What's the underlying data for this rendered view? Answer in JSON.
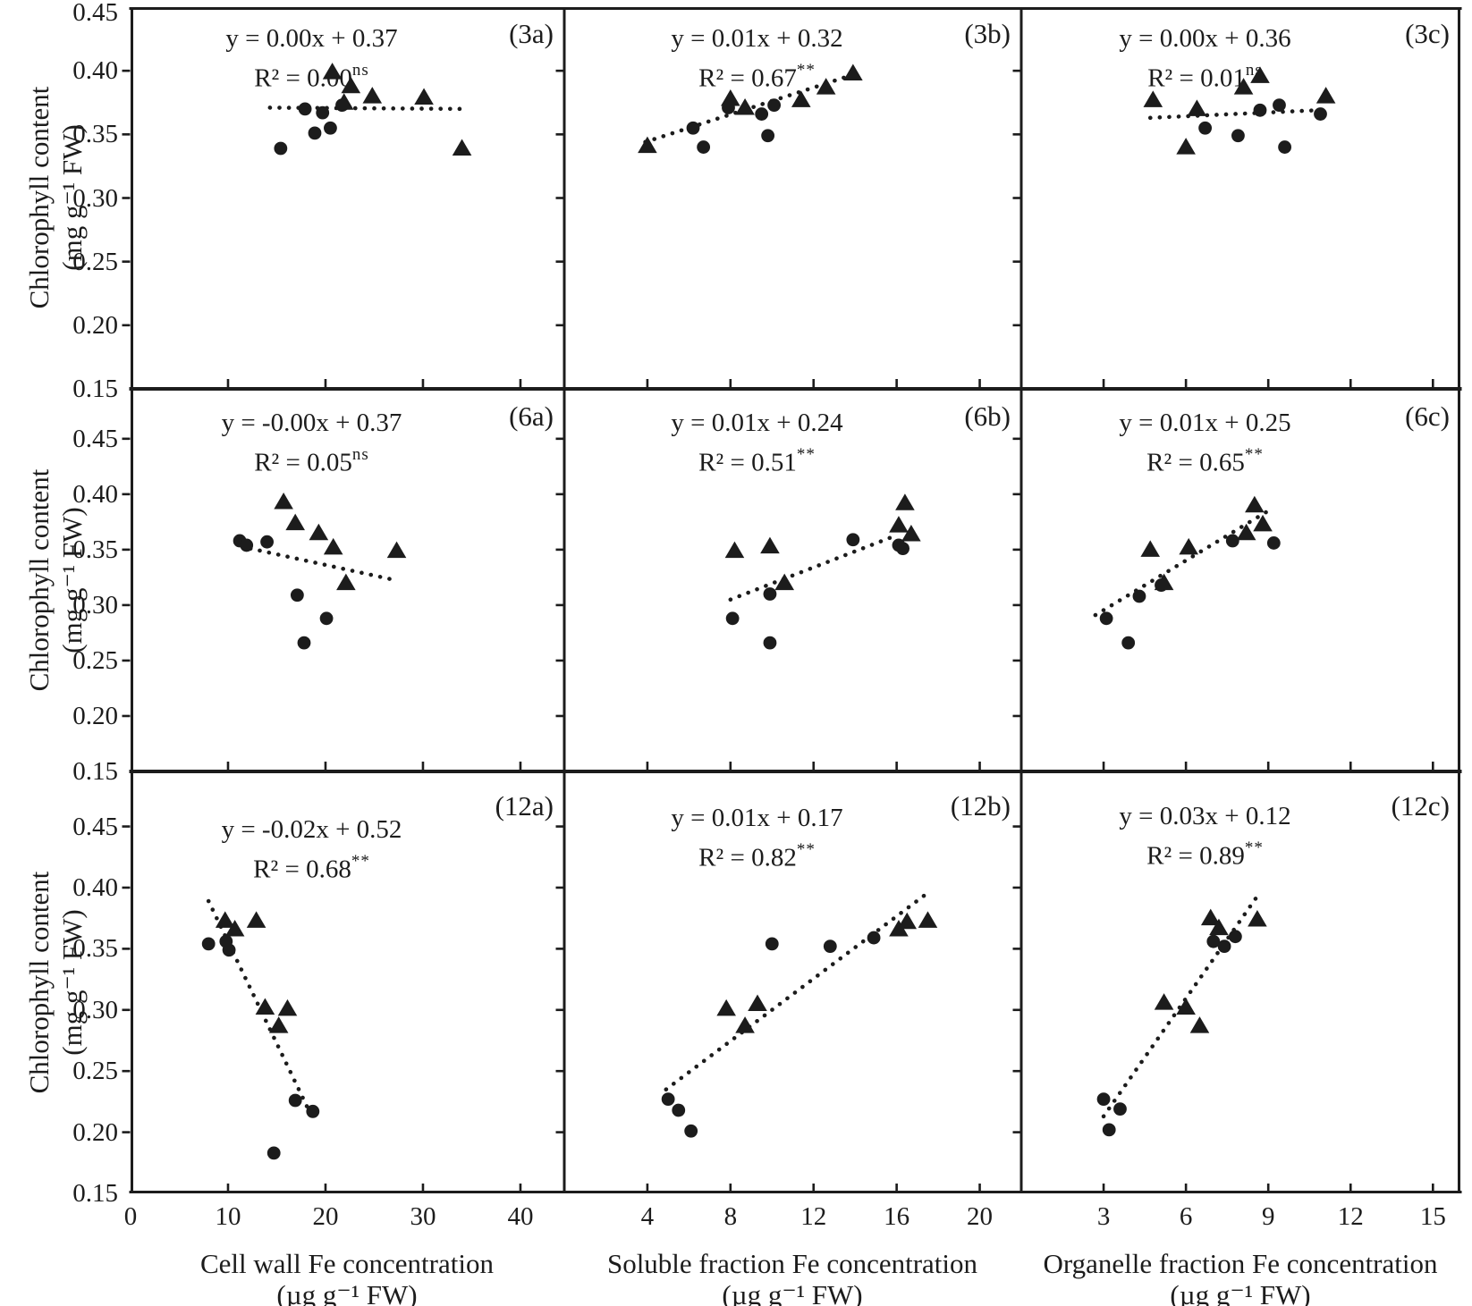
{
  "colors": {
    "ink": "#1c1c1c",
    "background": "#ffffff"
  },
  "chart_data": {
    "type": "scatter",
    "grid": "3 rows x 3 columns",
    "legend_position": "none",
    "y_axis_title_line1": "Chlorophyll content",
    "y_axis_title_line2": "(mg g⁻¹ FW)",
    "columns": [
      {
        "x_title_line1": "Cell wall Fe concentration",
        "x_title_line2": "(µg g⁻¹ FW)",
        "xlim": [
          0,
          44.5
        ],
        "xticks": [
          0,
          10,
          20,
          30,
          40
        ]
      },
      {
        "x_title_line1": "Soluble fraction Fe concentration",
        "x_title_line2": "(µg g⁻¹ FW)",
        "xlim": [
          0,
          22
        ],
        "xticks": [
          4,
          8,
          12,
          16,
          20
        ]
      },
      {
        "x_title_line1": "Organelle fraction Fe concentration",
        "x_title_line2": "(µg g⁻¹ FW)",
        "xlim": [
          0,
          16
        ],
        "xticks": [
          3,
          6,
          9,
          12,
          15
        ]
      }
    ],
    "rows": [
      {
        "ylim": [
          0.15,
          0.45
        ],
        "yticks": [
          0.45,
          0.4,
          0.35,
          0.3,
          0.25,
          0.2,
          0.15
        ]
      },
      {
        "ylim": [
          0.15,
          0.495
        ],
        "yticks": [
          0.45,
          0.4,
          0.35,
          0.3,
          0.25,
          0.2,
          0.15
        ]
      },
      {
        "ylim": [
          0.15,
          0.495
        ],
        "yticks": [
          0.45,
          0.4,
          0.35,
          0.3,
          0.25,
          0.2,
          0.15
        ]
      }
    ],
    "series_legend": [
      {
        "name": "filled-circle series",
        "marker": "circle"
      },
      {
        "name": "filled-triangle series",
        "marker": "triangle"
      }
    ],
    "panels": [
      {
        "id": "3a",
        "label": "(3a)",
        "row": 0,
        "col": 0,
        "equation": "y = 0.00x + 0.37",
        "r2": "R² = 0.00",
        "r2_sup": "ns",
        "trend": [
          [
            14.3,
            0.371
          ],
          [
            34.3,
            0.37
          ]
        ],
        "circles": [
          [
            15.4,
            0.339
          ],
          [
            17.9,
            0.37
          ],
          [
            18.9,
            0.351
          ],
          [
            19.7,
            0.367
          ],
          [
            20.5,
            0.355
          ],
          [
            21.7,
            0.373
          ]
        ],
        "triangles": [
          [
            20.7,
            0.399
          ],
          [
            21.9,
            0.375
          ],
          [
            22.6,
            0.388
          ],
          [
            24.8,
            0.38
          ],
          [
            30.1,
            0.379
          ],
          [
            34.0,
            0.339
          ]
        ]
      },
      {
        "id": "3b",
        "label": "(3b)",
        "row": 0,
        "col": 1,
        "equation": "y = 0.01x + 0.32",
        "r2": "R² = 0.67",
        "r2_sup": "**",
        "trend": [
          [
            3.9,
            0.344
          ],
          [
            14.3,
            0.399
          ]
        ],
        "circles": [
          [
            6.2,
            0.355
          ],
          [
            6.7,
            0.34
          ],
          [
            7.9,
            0.371
          ],
          [
            9.5,
            0.366
          ],
          [
            9.8,
            0.349
          ],
          [
            10.1,
            0.373
          ]
        ],
        "triangles": [
          [
            4.0,
            0.341
          ],
          [
            8.0,
            0.378
          ],
          [
            8.7,
            0.371
          ],
          [
            11.4,
            0.377
          ],
          [
            12.6,
            0.387
          ],
          [
            13.9,
            0.398
          ]
        ]
      },
      {
        "id": "3c",
        "label": "(3c)",
        "row": 0,
        "col": 2,
        "equation": "y = 0.00x + 0.36",
        "r2": "R² = 0.01",
        "r2_sup": "ns",
        "trend": [
          [
            4.7,
            0.363
          ],
          [
            10.8,
            0.369
          ]
        ],
        "circles": [
          [
            6.7,
            0.355
          ],
          [
            7.9,
            0.349
          ],
          [
            8.7,
            0.369
          ],
          [
            9.4,
            0.373
          ],
          [
            9.6,
            0.34
          ],
          [
            10.9,
            0.366
          ]
        ],
        "triangles": [
          [
            4.8,
            0.377
          ],
          [
            6.0,
            0.34
          ],
          [
            6.4,
            0.37
          ],
          [
            8.1,
            0.387
          ],
          [
            8.7,
            0.396
          ],
          [
            11.1,
            0.38
          ]
        ]
      },
      {
        "id": "6a",
        "label": "(6a)",
        "row": 1,
        "col": 0,
        "equation": "y = -0.00x + 0.37",
        "r2": "R² = 0.05",
        "r2_sup": "ns",
        "trend": [
          [
            12.3,
            0.351
          ],
          [
            26.9,
            0.323
          ]
        ],
        "circles": [
          [
            11.2,
            0.358
          ],
          [
            11.9,
            0.354
          ],
          [
            14.0,
            0.357
          ],
          [
            17.1,
            0.309
          ],
          [
            17.8,
            0.266
          ],
          [
            20.1,
            0.288
          ]
        ],
        "triangles": [
          [
            15.7,
            0.393
          ],
          [
            16.9,
            0.374
          ],
          [
            19.3,
            0.365
          ],
          [
            20.8,
            0.352
          ],
          [
            22.1,
            0.32
          ],
          [
            27.3,
            0.349
          ]
        ]
      },
      {
        "id": "6b",
        "label": "(6b)",
        "row": 1,
        "col": 1,
        "equation": "y = 0.01x + 0.24",
        "r2": "R² = 0.51",
        "r2_sup": "**",
        "trend": [
          [
            8.0,
            0.305
          ],
          [
            16.0,
            0.363
          ]
        ],
        "circles": [
          [
            8.1,
            0.288
          ],
          [
            9.9,
            0.266
          ],
          [
            9.9,
            0.31
          ],
          [
            13.9,
            0.359
          ],
          [
            16.1,
            0.354
          ],
          [
            16.3,
            0.351
          ]
        ],
        "triangles": [
          [
            8.2,
            0.349
          ],
          [
            9.9,
            0.353
          ],
          [
            10.6,
            0.32
          ],
          [
            16.1,
            0.372
          ],
          [
            16.4,
            0.392
          ],
          [
            16.7,
            0.364
          ]
        ]
      },
      {
        "id": "6c",
        "label": "(6c)",
        "row": 1,
        "col": 2,
        "equation": "y = 0.01x + 0.25",
        "r2": "R² = 0.65",
        "r2_sup": "**",
        "trend": [
          [
            2.7,
            0.291
          ],
          [
            9.0,
            0.385
          ]
        ],
        "circles": [
          [
            3.1,
            0.288
          ],
          [
            3.9,
            0.266
          ],
          [
            4.3,
            0.308
          ],
          [
            5.1,
            0.318
          ],
          [
            7.7,
            0.358
          ],
          [
            9.2,
            0.356
          ]
        ],
        "triangles": [
          [
            4.7,
            0.35
          ],
          [
            5.2,
            0.32
          ],
          [
            6.1,
            0.352
          ],
          [
            8.2,
            0.365
          ],
          [
            8.5,
            0.39
          ],
          [
            8.8,
            0.373
          ]
        ]
      },
      {
        "id": "12a",
        "label": "(12a)",
        "row": 2,
        "col": 0,
        "equation": "y = -0.02x + 0.52",
        "r2": "R² = 0.68",
        "r2_sup": "**",
        "trend": [
          [
            8.0,
            0.389
          ],
          [
            18.7,
            0.211
          ]
        ],
        "circles": [
          [
            8.0,
            0.354
          ],
          [
            9.8,
            0.356
          ],
          [
            10.1,
            0.349
          ],
          [
            14.7,
            0.183
          ],
          [
            16.9,
            0.226
          ],
          [
            18.7,
            0.217
          ]
        ],
        "triangles": [
          [
            9.7,
            0.373
          ],
          [
            10.7,
            0.366
          ],
          [
            12.9,
            0.373
          ],
          [
            13.8,
            0.302
          ],
          [
            15.2,
            0.287
          ],
          [
            16.1,
            0.301
          ]
        ]
      },
      {
        "id": "12b",
        "label": "(12b)",
        "row": 2,
        "col": 1,
        "equation": "y = 0.01x + 0.17",
        "r2": "R² = 0.82",
        "r2_sup": "**",
        "trend": [
          [
            4.9,
            0.235
          ],
          [
            17.6,
            0.397
          ]
        ],
        "circles": [
          [
            5.0,
            0.227
          ],
          [
            5.5,
            0.218
          ],
          [
            6.1,
            0.201
          ],
          [
            10.0,
            0.354
          ],
          [
            12.8,
            0.352
          ],
          [
            14.9,
            0.359
          ]
        ],
        "triangles": [
          [
            7.8,
            0.301
          ],
          [
            8.7,
            0.287
          ],
          [
            9.3,
            0.305
          ],
          [
            16.1,
            0.366
          ],
          [
            16.5,
            0.372
          ],
          [
            17.5,
            0.373
          ]
        ]
      },
      {
        "id": "12c",
        "label": "(12c)",
        "row": 2,
        "col": 2,
        "equation": "y = 0.03x + 0.12",
        "r2": "R² = 0.89",
        "r2_sup": "**",
        "trend": [
          [
            3.0,
            0.213
          ],
          [
            8.6,
            0.393
          ]
        ],
        "circles": [
          [
            3.0,
            0.227
          ],
          [
            3.2,
            0.202
          ],
          [
            3.6,
            0.219
          ],
          [
            7.0,
            0.356
          ],
          [
            7.4,
            0.352
          ],
          [
            7.8,
            0.36
          ]
        ],
        "triangles": [
          [
            5.2,
            0.306
          ],
          [
            6.0,
            0.302
          ],
          [
            6.5,
            0.287
          ],
          [
            6.9,
            0.375
          ],
          [
            7.2,
            0.367
          ],
          [
            8.6,
            0.374
          ]
        ]
      }
    ]
  }
}
